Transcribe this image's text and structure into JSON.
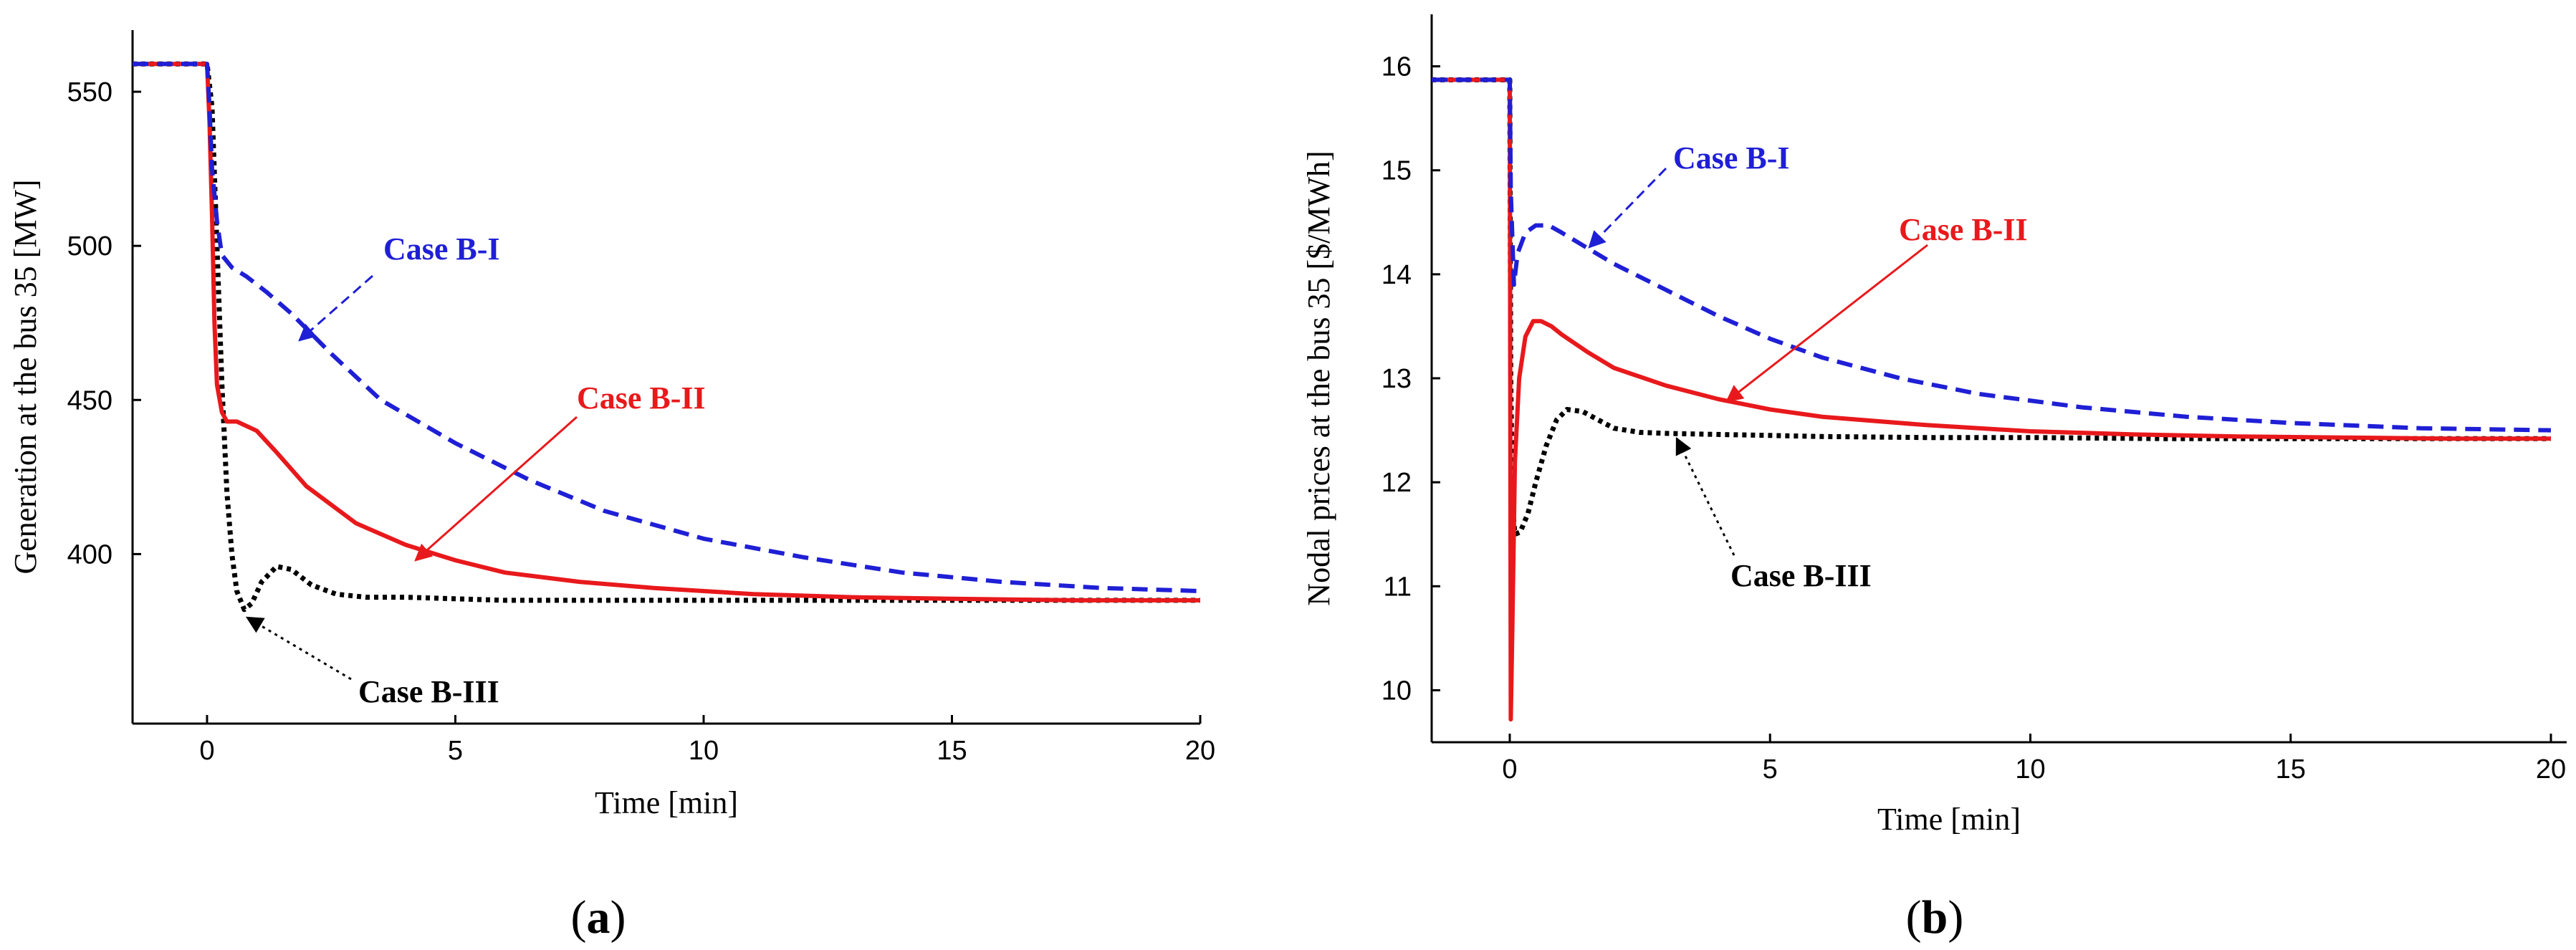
{
  "chart_data": [
    {
      "type": "line",
      "panel_label": "(a)",
      "panel_label_letter": "a",
      "xlabel": "Time [min]",
      "ylabel": "Generation at the bus 35 [MW]",
      "xlim": [
        -1.5,
        20
      ],
      "ylim": [
        345,
        570
      ],
      "xticks": [
        0,
        5,
        10,
        15,
        20
      ],
      "yticks": [
        400,
        450,
        500,
        550
      ],
      "series": [
        {
          "name": "Case B-I",
          "color": "#1f1fd6",
          "style": "dashed",
          "x": [
            -1.5,
            0,
            0.05,
            0.1,
            0.2,
            0.3,
            0.5,
            0.8,
            1.2,
            1.7,
            2.5,
            3.5,
            5,
            6.5,
            8,
            10,
            12,
            14,
            16,
            18,
            20
          ],
          "y": [
            559,
            559,
            545,
            525,
            508,
            497,
            493,
            490,
            485,
            478,
            465,
            450,
            436,
            424,
            414,
            405,
            399,
            394,
            391,
            389,
            388
          ]
        },
        {
          "name": "Case B-II",
          "color": "#e8191c",
          "style": "solid",
          "x": [
            -1.5,
            0,
            0.05,
            0.1,
            0.15,
            0.2,
            0.3,
            0.4,
            0.6,
            1.0,
            1.4,
            2.0,
            3.0,
            4.0,
            5.0,
            6.0,
            7.5,
            9.0,
            11.0,
            13.0,
            15.0,
            17.5,
            20
          ],
          "y": [
            559,
            559,
            540,
            510,
            475,
            455,
            446,
            443,
            443,
            440,
            433,
            422,
            410,
            403,
            398,
            394,
            391,
            389,
            387,
            386,
            385.5,
            385,
            385
          ]
        },
        {
          "name": "Case B-III",
          "color": "#000000",
          "style": "dotted",
          "x": [
            -1.5,
            0,
            0.1,
            0.2,
            0.3,
            0.4,
            0.5,
            0.6,
            0.75,
            0.9,
            1.1,
            1.4,
            1.7,
            2.1,
            2.6,
            3.2,
            4.0,
            5.0,
            6.0,
            8.0,
            10.0,
            12.5,
            15.0,
            17.5,
            20
          ],
          "y": [
            559,
            559,
            545,
            500,
            455,
            420,
            400,
            388,
            382,
            384,
            391,
            396,
            395,
            390,
            387,
            386,
            386,
            385.5,
            385,
            385,
            385,
            385,
            385,
            385,
            385
          ]
        }
      ],
      "annotations": [
        {
          "text": "Case B-I",
          "color": "#1f1fd6"
        },
        {
          "text": "Case B-II",
          "color": "#e8191c"
        },
        {
          "text": "Case B-III",
          "color": "#000000"
        }
      ]
    },
    {
      "type": "line",
      "panel_label": "(b)",
      "panel_label_letter": "b",
      "xlabel": "Time [min]",
      "ylabel": "Nodal prices at the bus 35 [$/MWh]",
      "xlim": [
        -1.5,
        20
      ],
      "ylim": [
        9.5,
        16.5
      ],
      "xticks": [
        0,
        5,
        10,
        15,
        20
      ],
      "yticks": [
        10,
        11,
        12,
        13,
        14,
        15,
        16
      ],
      "series": [
        {
          "name": "Case B-I",
          "color": "#1f1fd6",
          "style": "dashed",
          "x": [
            -1.5,
            0,
            0.02,
            0.08,
            0.15,
            0.3,
            0.5,
            0.75,
            1.0,
            1.5,
            2.0,
            3.0,
            4.0,
            5.0,
            6.0,
            7.5,
            9.0,
            11.0,
            13.0,
            15.0,
            17.5,
            20
          ],
          "y": [
            15.87,
            15.87,
            14.8,
            13.9,
            14.2,
            14.4,
            14.47,
            14.47,
            14.4,
            14.25,
            14.1,
            13.85,
            13.6,
            13.38,
            13.2,
            13.0,
            12.85,
            12.72,
            12.63,
            12.57,
            12.52,
            12.5
          ]
        },
        {
          "name": "Case B-II",
          "color": "#e8191c",
          "style": "solid",
          "x": [
            -1.5,
            0,
            0.02,
            0.05,
            0.1,
            0.18,
            0.3,
            0.45,
            0.6,
            0.8,
            1.0,
            1.5,
            2.0,
            3.0,
            4.0,
            5.0,
            6.0,
            8.0,
            10.0,
            12.0,
            14.0,
            16.0,
            18.0,
            20
          ],
          "y": [
            15.87,
            15.87,
            9.72,
            10.6,
            12.2,
            13.0,
            13.4,
            13.55,
            13.55,
            13.5,
            13.42,
            13.25,
            13.1,
            12.93,
            12.8,
            12.7,
            12.63,
            12.55,
            12.49,
            12.46,
            12.44,
            12.43,
            12.42,
            12.42
          ]
        },
        {
          "name": "Case B-III",
          "color": "#000000",
          "style": "dotted",
          "x": [
            -1.5,
            0,
            0.02,
            0.05,
            0.1,
            0.2,
            0.35,
            0.5,
            0.7,
            0.9,
            1.1,
            1.4,
            1.7,
            2.0,
            2.5,
            3.0,
            4.0,
            5.0,
            6.0,
            8.0,
            10.0,
            12.5,
            15.0,
            17.5,
            20
          ],
          "y": [
            15.87,
            15.87,
            13.0,
            11.8,
            11.5,
            11.52,
            11.7,
            12.0,
            12.35,
            12.6,
            12.7,
            12.68,
            12.6,
            12.52,
            12.48,
            12.47,
            12.46,
            12.45,
            12.44,
            12.43,
            12.43,
            12.42,
            12.42,
            12.42,
            12.42
          ]
        }
      ],
      "annotations": [
        {
          "text": "Case B-I",
          "color": "#1f1fd6"
        },
        {
          "text": "Case B-II",
          "color": "#e8191c"
        },
        {
          "text": "Case B-III",
          "color": "#000000"
        }
      ]
    }
  ]
}
